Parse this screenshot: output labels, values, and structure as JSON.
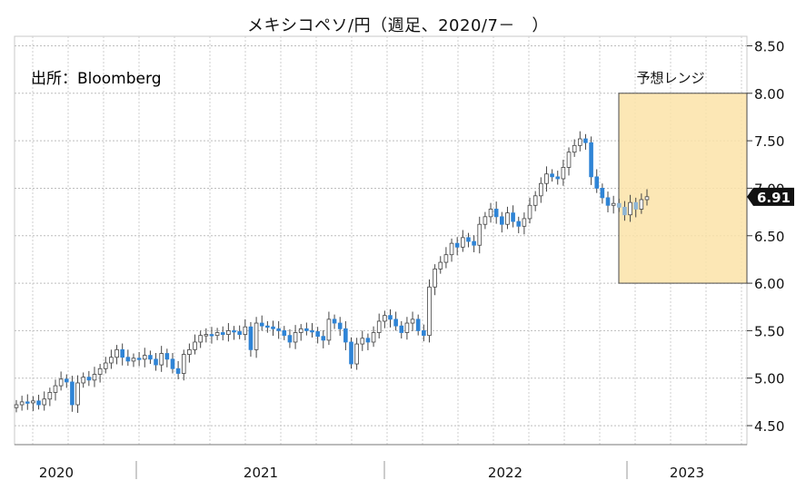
{
  "title": "メキシコペソ/円（週足、2020/7－　）",
  "source_note": "出所：Bloomberg",
  "chart_data": {
    "type": "candlestick",
    "title": "メキシコペソ/円（週足、2020/7－　）",
    "y_axis_side": "right",
    "ylim": [
      4.3,
      8.6
    ],
    "yticks": [
      4.5,
      5.0,
      5.5,
      6.0,
      6.5,
      7.0,
      7.5,
      8.0,
      8.5
    ],
    "ytick_labels": [
      "4.50",
      "5.00",
      "5.50",
      "6.00",
      "6.50",
      "7.00",
      "7.50",
      "8.00",
      "8.50"
    ],
    "x_period_labels": [
      "2020",
      "2021",
      "2022",
      "2023"
    ],
    "last_value_label": "6.91",
    "last_value": 6.91,
    "forecast_range": {
      "label": "予想レンジ",
      "low": 6.0,
      "high": 8.0
    },
    "grid": true,
    "candle_colors": {
      "up": "#ffffff",
      "down": "#2f84d6",
      "forecast": "#8fb6d6"
    },
    "weekly_close": [
      4.72,
      4.75,
      4.74,
      4.76,
      4.72,
      4.78,
      4.85,
      4.92,
      4.99,
      4.96,
      4.72,
      4.95,
      5.01,
      4.98,
      5.04,
      5.1,
      5.16,
      5.22,
      5.3,
      5.22,
      5.18,
      5.21,
      5.2,
      5.24,
      5.2,
      5.14,
      5.26,
      5.2,
      5.1,
      5.05,
      5.25,
      5.3,
      5.38,
      5.45,
      5.46,
      5.45,
      5.48,
      5.46,
      5.5,
      5.49,
      5.46,
      5.54,
      5.3,
      5.58,
      5.55,
      5.54,
      5.52,
      5.5,
      5.45,
      5.38,
      5.48,
      5.52,
      5.5,
      5.49,
      5.44,
      5.4,
      5.62,
      5.58,
      5.52,
      5.38,
      5.15,
      5.36,
      5.42,
      5.38,
      5.48,
      5.6,
      5.66,
      5.62,
      5.55,
      5.48,
      5.58,
      5.62,
      5.5,
      5.45,
      5.96,
      6.15,
      6.22,
      6.3,
      6.42,
      6.38,
      6.48,
      6.44,
      6.4,
      6.62,
      6.7,
      6.78,
      6.7,
      6.62,
      6.74,
      6.65,
      6.6,
      6.68,
      6.82,
      6.92,
      7.05,
      7.15,
      7.12,
      7.1,
      7.22,
      7.38,
      7.45,
      7.52,
      7.48,
      7.12,
      7.0,
      6.9,
      6.82,
      6.84,
      6.8,
      6.72,
      6.85,
      6.78,
      6.88,
      6.91
    ]
  }
}
